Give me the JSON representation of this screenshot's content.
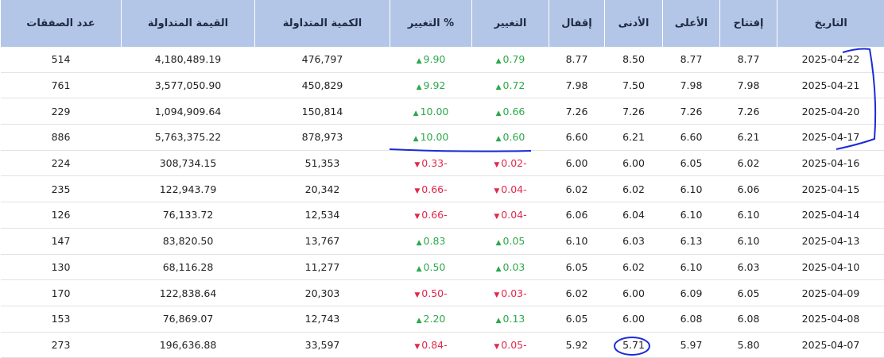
{
  "table": {
    "header": [
      "التاريخ",
      "إفتتاح",
      "الأعلى",
      "الأدنى",
      "إقفال",
      "التغيير",
      "% التغيير",
      "الكمية المتداولة",
      "القيمة المتداولة",
      "عدد الصفقات"
    ],
    "rows": [
      [
        "2025-04-22",
        "8.77",
        "8.77",
        "8.50",
        "8.77",
        "0.79",
        "9.90",
        "476,797",
        "4,180,489.19",
        "514"
      ],
      [
        "2025-04-21",
        "7.98",
        "7.98",
        "7.50",
        "7.98",
        "0.72",
        "9.92",
        "450,829",
        "3,577,050.90",
        "761"
      ],
      [
        "2025-04-20",
        "7.26",
        "7.26",
        "7.26",
        "7.26",
        "0.66",
        "10.00",
        "150,814",
        "1,094,909.64",
        "229"
      ],
      [
        "2025-04-17",
        "6.21",
        "6.60",
        "6.21",
        "6.60",
        "0.60",
        "10.00",
        "878,973",
        "5,763,375.22",
        "886"
      ],
      [
        "2025-04-16",
        "6.02",
        "6.05",
        "6.00",
        "6.00",
        "0.02-",
        "0.33-",
        "51,353",
        "308,734.15",
        "224"
      ],
      [
        "2025-04-15",
        "6.06",
        "6.10",
        "6.02",
        "6.02",
        "0.04-",
        "0.66-",
        "20,342",
        "122,943.79",
        "235"
      ],
      [
        "2025-04-14",
        "6.10",
        "6.10",
        "6.04",
        "6.06",
        "0.04-",
        "0.66-",
        "12,534",
        "76,133.72",
        "126"
      ],
      [
        "2025-04-13",
        "6.10",
        "6.13",
        "6.03",
        "6.10",
        "0.05",
        "0.83",
        "13,767",
        "83,820.50",
        "147"
      ],
      [
        "2025-04-10",
        "6.03",
        "6.10",
        "6.02",
        "6.05",
        "0.03",
        "0.50",
        "11,277",
        "68,116.28",
        "130"
      ],
      [
        "2025-04-09",
        "6.05",
        "6.09",
        "6.00",
        "6.02",
        "0.03-",
        "0.50-",
        "20,303",
        "122,838.64",
        "170"
      ],
      [
        "2025-04-08",
        "6.08",
        "6.08",
        "6.00",
        "6.05",
        "0.13",
        "2.20",
        "12,743",
        "76,869.07",
        "153"
      ],
      [
        "2025-04-07",
        "5.80",
        "5.97",
        "5.71",
        "5.92",
        "0.05-",
        "0.84-",
        "33,597",
        "196,636.88",
        "273"
      ]
    ]
  }
}
